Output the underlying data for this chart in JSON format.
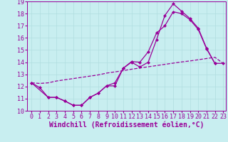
{
  "xlabel": "Windchill (Refroidissement éolien,°C)",
  "xlim": [
    -0.5,
    23.3
  ],
  "ylim": [
    10,
    19
  ],
  "xticks": [
    0,
    1,
    2,
    3,
    4,
    5,
    6,
    7,
    8,
    9,
    10,
    11,
    12,
    13,
    14,
    15,
    16,
    17,
    18,
    19,
    20,
    21,
    22,
    23
  ],
  "yticks": [
    10,
    11,
    12,
    13,
    14,
    15,
    16,
    17,
    18,
    19
  ],
  "bg_color": "#c8eef0",
  "line_color": "#990099",
  "line1_x": [
    0,
    1,
    2,
    3,
    4,
    5,
    6,
    7,
    8,
    9,
    10,
    11,
    12,
    13,
    14,
    15,
    16,
    17,
    18,
    19,
    20,
    21,
    22
  ],
  "line1_y": [
    12.3,
    11.9,
    11.1,
    11.1,
    10.8,
    10.45,
    10.45,
    11.1,
    11.45,
    12.05,
    12.05,
    13.5,
    14.0,
    13.6,
    14.0,
    15.85,
    17.85,
    18.8,
    18.2,
    17.6,
    16.8,
    15.15,
    13.9
  ],
  "line2_x": [
    0,
    1,
    2,
    3,
    4,
    5,
    6,
    7,
    8,
    9,
    10,
    11,
    12,
    13,
    14,
    15,
    16,
    17,
    18,
    19,
    20,
    21,
    22,
    23
  ],
  "line2_y": [
    12.3,
    12.25,
    12.3,
    12.45,
    12.55,
    12.65,
    12.75,
    12.85,
    12.95,
    13.1,
    13.2,
    13.3,
    13.42,
    13.52,
    13.62,
    13.72,
    13.82,
    13.92,
    14.02,
    14.1,
    14.2,
    14.3,
    14.4,
    13.9
  ],
  "line3_x": [
    0,
    2,
    3,
    4,
    5,
    6,
    7,
    8,
    9,
    10,
    11,
    12,
    13,
    14,
    15,
    16,
    17,
    18,
    19,
    20,
    21,
    22,
    23
  ],
  "line3_y": [
    12.3,
    11.1,
    11.1,
    10.8,
    10.45,
    10.45,
    11.1,
    11.45,
    12.05,
    12.3,
    13.5,
    14.05,
    14.0,
    14.85,
    16.4,
    17.0,
    18.15,
    18.0,
    17.5,
    16.7,
    15.1,
    13.9,
    13.9
  ],
  "grid_color": "#b0dde0",
  "tick_fontsize": 6,
  "xlabel_fontsize": 7,
  "marker": "D",
  "markersize": 2.5,
  "lw": 0.9
}
